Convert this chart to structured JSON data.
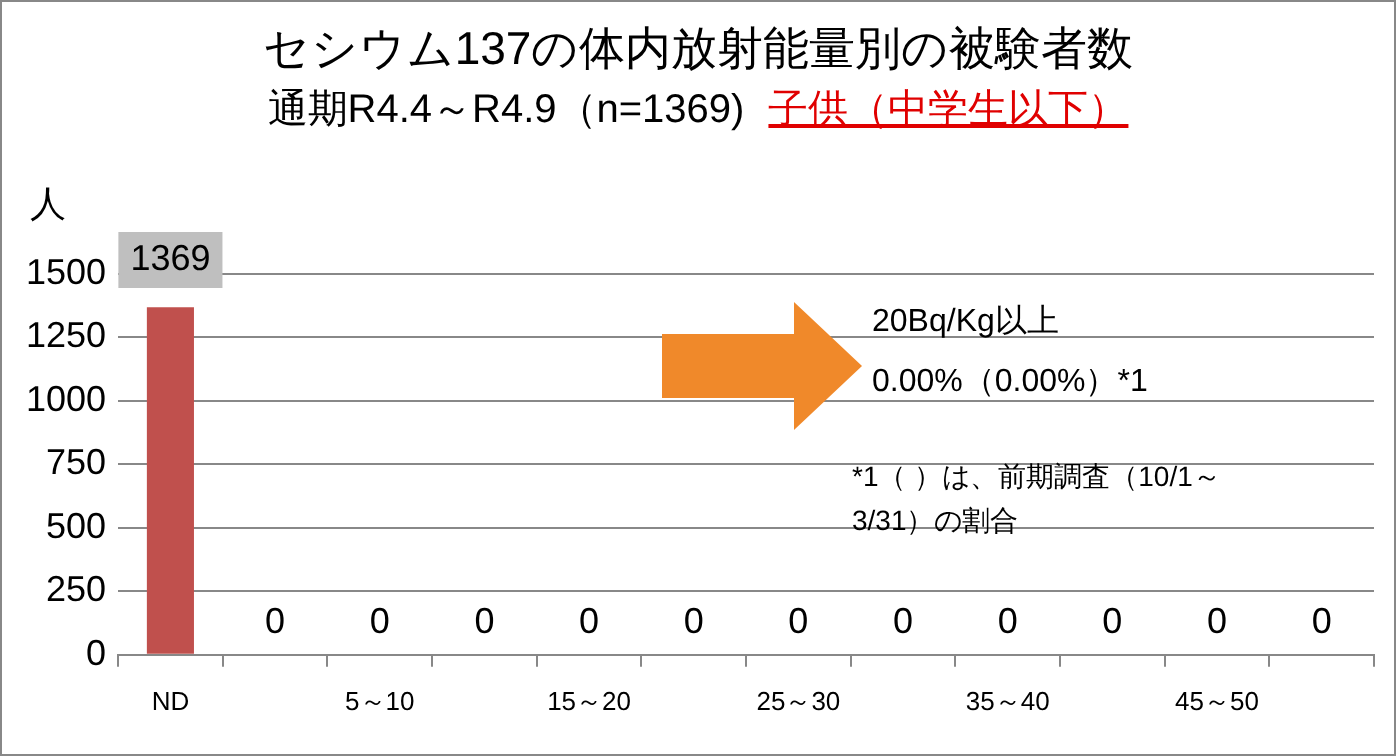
{
  "chart_data": {
    "type": "bar",
    "title": "セシウム137の体内放射能量別の被験者数",
    "subtitle": "通期R4.4～R4.9（n=1369)",
    "ylabel": "人",
    "categories": [
      "ND",
      null,
      "5～10",
      null,
      "15～20",
      null,
      "25～30",
      null,
      "35～40",
      null,
      "45～50",
      null
    ],
    "values": [
      1369,
      0,
      0,
      0,
      0,
      0,
      0,
      0,
      0,
      0,
      0,
      0
    ],
    "color": "#c0504d",
    "ylim": [
      0,
      1500
    ],
    "yticks": [
      0,
      250,
      500,
      750,
      1000,
      1250,
      1500
    ],
    "grid": "y",
    "data_labels": true,
    "annotations": [
      "子供（中学生以下）",
      "20Bq/Kg以上",
      "0.00%（0.00%）*1",
      "*1（ ）は、前期調査（10/1～3/31）の割合"
    ]
  }
}
